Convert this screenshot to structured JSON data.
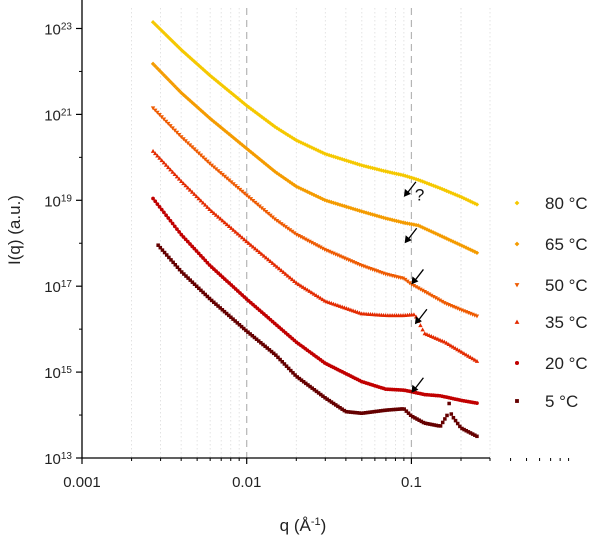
{
  "chart_data": {
    "type": "scatter",
    "title": "",
    "xlabel_base": "q (Å",
    "xlabel_exp": "-1",
    "xlabel_close": ")",
    "ylabel": "I(q) (a.u.)",
    "x_scale": "log",
    "y_scale": "log",
    "xlim": [
      0.001,
      0.3
    ],
    "ylim": [
      10000000000000.0,
      3e+23
    ],
    "x_ticks": [
      {
        "value": 0.001,
        "label": "0.001"
      },
      {
        "value": 0.01,
        "label": "0.01"
      },
      {
        "value": 0.1,
        "label": "0.1"
      }
    ],
    "y_ticks": [
      {
        "value": 10000000000000.0,
        "base": "10",
        "exp": "13"
      },
      {
        "value": 1000000000000000.0,
        "base": "10",
        "exp": "15"
      },
      {
        "value": 1e+17,
        "base": "10",
        "exp": "17"
      },
      {
        "value": 1e+19,
        "base": "10",
        "exp": "19"
      },
      {
        "value": 1e+21,
        "base": "10",
        "exp": "21"
      },
      {
        "value": 1e+23,
        "base": "10",
        "exp": "23"
      }
    ],
    "grid": "dashed vertical lines at decades, dotted minor vertical lines",
    "legend_position": "right",
    "series": [
      {
        "name": "80 °C",
        "color": "#f5c800",
        "marker": "diamond",
        "points": [
          [
            0.0027,
            1.4e+23
          ],
          [
            0.004,
            3.2e+22
          ],
          [
            0.006,
            8e+21
          ],
          [
            0.01,
            1.6e+21
          ],
          [
            0.015,
            5e+20
          ],
          [
            0.02,
            2.5e+20
          ],
          [
            0.03,
            1.2e+20
          ],
          [
            0.05,
            6.5e+19
          ],
          [
            0.07,
            4.7e+19
          ],
          [
            0.09,
            3.8e+19
          ],
          [
            0.11,
            3e+19
          ],
          [
            0.15,
            1.9e+19
          ],
          [
            0.2,
            1.2e+19
          ],
          [
            0.25,
            8e+18
          ]
        ]
      },
      {
        "name": "65 °C",
        "color": "#f49b00",
        "marker": "diamond",
        "points": [
          [
            0.0027,
            1.5e+22
          ],
          [
            0.004,
            3.2e+21
          ],
          [
            0.006,
            8e+20
          ],
          [
            0.01,
            1.6e+20
          ],
          [
            0.015,
            4.5e+19
          ],
          [
            0.02,
            2.1e+19
          ],
          [
            0.03,
            1e+19
          ],
          [
            0.05,
            5.5e+18
          ],
          [
            0.07,
            3.8e+18
          ],
          [
            0.09,
            3e+18
          ],
          [
            0.11,
            2.6e+18
          ],
          [
            0.15,
            1.5e+18
          ],
          [
            0.2,
            9e+17
          ],
          [
            0.25,
            6e+17
          ]
        ]
      },
      {
        "name": "50 °C",
        "color": "#ee5a00",
        "marker": "triangle-down",
        "points": [
          [
            0.0027,
            1.4e+21
          ],
          [
            0.004,
            3e+20
          ],
          [
            0.006,
            7e+19
          ],
          [
            0.01,
            1.3e+19
          ],
          [
            0.015,
            3.5e+18
          ],
          [
            0.02,
            1.6e+18
          ],
          [
            0.03,
            7e+17
          ],
          [
            0.05,
            3e+17
          ],
          [
            0.07,
            1.9e+17
          ],
          [
            0.09,
            1.5e+17
          ],
          [
            0.1,
            1.1e+17
          ],
          [
            0.12,
            7.5e+16
          ],
          [
            0.16,
            4e+16
          ],
          [
            0.2,
            2.8e+16
          ],
          [
            0.25,
            2e+16
          ]
        ]
      },
      {
        "name": "35 °C",
        "color": "#e32a00",
        "marker": "triangle-up",
        "points": [
          [
            0.0027,
            1.4e+20
          ],
          [
            0.004,
            2.8e+19
          ],
          [
            0.006,
            6e+18
          ],
          [
            0.01,
            1.1e+18
          ],
          [
            0.015,
            3e+17
          ],
          [
            0.02,
            1.2e+17
          ],
          [
            0.03,
            4.5e+16
          ],
          [
            0.05,
            2.3e+16
          ],
          [
            0.07,
            2.1e+16
          ],
          [
            0.09,
            2.1e+16
          ],
          [
            0.105,
            2.2e+16
          ],
          [
            0.12,
            8000000000000000.0
          ],
          [
            0.16,
            5000000000000000.0
          ],
          [
            0.2,
            3000000000000000.0
          ],
          [
            0.25,
            1800000000000000.0
          ]
        ]
      },
      {
        "name": "20 °C",
        "color": "#c10000",
        "marker": "circle",
        "points": [
          [
            0.0027,
            1.1e+19
          ],
          [
            0.004,
            1.6e+18
          ],
          [
            0.006,
            3e+17
          ],
          [
            0.01,
            5e+16
          ],
          [
            0.015,
            1.3e+16
          ],
          [
            0.02,
            5000000000000000.0
          ],
          [
            0.03,
            1600000000000000.0
          ],
          [
            0.05,
            600000000000000.0
          ],
          [
            0.07,
            400000000000000.0
          ],
          [
            0.09,
            380000000000000.0
          ],
          [
            0.1,
            350000000000000.0
          ],
          [
            0.12,
            300000000000000.0
          ],
          [
            0.15,
            280000000000000.0
          ],
          [
            0.2,
            220000000000000.0
          ],
          [
            0.25,
            190000000000000.0
          ]
        ]
      },
      {
        "name": "5 °C",
        "color": "#650000",
        "marker": "square",
        "points": [
          [
            0.0029,
            9e+17
          ],
          [
            0.004,
            2.2e+17
          ],
          [
            0.006,
            5e+16
          ],
          [
            0.01,
            9000000000000000.0
          ],
          [
            0.015,
            2500000000000000.0
          ],
          [
            0.02,
            800000000000000.0
          ],
          [
            0.03,
            250000000000000.0
          ],
          [
            0.04,
            120000000000000.0
          ],
          [
            0.05,
            110000000000000.0
          ],
          [
            0.07,
            130000000000000.0
          ],
          [
            0.09,
            140000000000000.0
          ],
          [
            0.1,
            95000000000000.0
          ],
          [
            0.12,
            65000000000000.0
          ],
          [
            0.15,
            55000000000000.0
          ],
          [
            0.165,
            100000000000000.0
          ],
          [
            0.17,
            200000000000000.0
          ],
          [
            0.175,
            100000000000000.0
          ],
          [
            0.2,
            50000000000000.0
          ],
          [
            0.25,
            32000000000000.0
          ]
        ]
      }
    ],
    "annotations": [
      {
        "text": "?",
        "x": 0.105,
        "y": 1.35e+19
      },
      {
        "text": "",
        "type": "arrow",
        "x": 0.09,
        "y": 1.2e+19
      },
      {
        "text": "",
        "type": "arrow",
        "x": 0.091,
        "y": 1e+18
      },
      {
        "text": "",
        "type": "arrow",
        "x": 0.1,
        "y": 1.1e+17
      },
      {
        "text": "",
        "type": "arrow",
        "x": 0.105,
        "y": 1.3e+16
      },
      {
        "text": "",
        "type": "arrow",
        "x": 0.1,
        "y": 330000000000000.0
      }
    ]
  }
}
